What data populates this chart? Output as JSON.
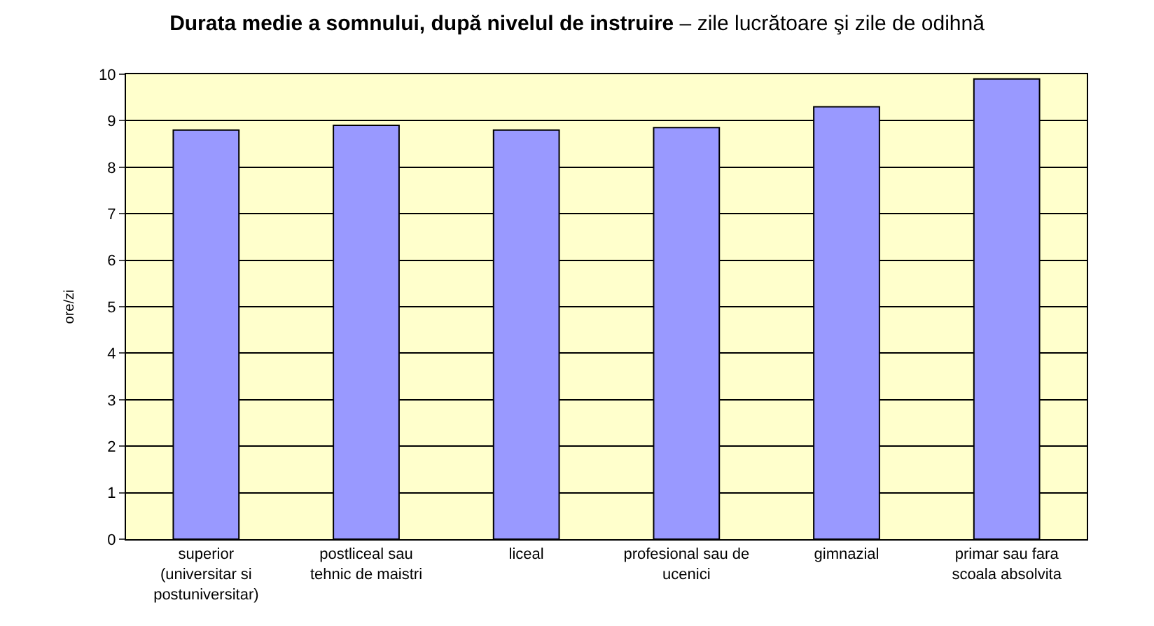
{
  "chart_data": {
    "type": "bar",
    "title": "Durata medie a somnului, după nivelul de instruire",
    "subtitle": "– zile lucrătoare şi zile de odihnă",
    "ylabel": "ore/zi",
    "categories": [
      "superior (universitar si postuniversitar)",
      "postliceal sau tehnic de maistri",
      "liceal",
      "profesional sau de ucenici",
      "gimnazial",
      "primar sau fara scoala absolvita"
    ],
    "values": [
      8.8,
      8.9,
      8.8,
      8.85,
      9.3,
      9.9
    ],
    "color": "#9999ff",
    "ylim": [
      0,
      10
    ],
    "yticks": [
      0,
      1,
      2,
      3,
      4,
      5,
      6,
      7,
      8,
      9,
      10
    ],
    "grid": "y"
  }
}
